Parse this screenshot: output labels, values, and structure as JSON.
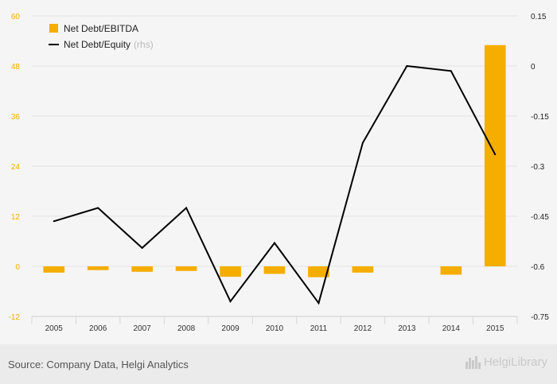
{
  "chart_data": {
    "type": "bar+line",
    "categories": [
      "2005",
      "2006",
      "2007",
      "2008",
      "2009",
      "2010",
      "2011",
      "2012",
      "2013",
      "2014",
      "2015"
    ],
    "series": [
      {
        "name": "Net Debt/EBITDA",
        "kind": "bar",
        "axis": "left",
        "color": "#f5ad00",
        "values": [
          -1.5,
          -0.9,
          -1.3,
          -1.1,
          -2.5,
          -1.8,
          -2.6,
          -1.5,
          null,
          -2.0,
          53.0
        ]
      },
      {
        "name": "Net Debt/Equity",
        "rhs_suffix": "(rhs)",
        "kind": "line",
        "axis": "right",
        "color": "#000000",
        "values": [
          -0.465,
          -0.425,
          -0.545,
          -0.425,
          -0.705,
          -0.53,
          -0.71,
          -0.23,
          0.0,
          -0.015,
          -0.265
        ]
      }
    ],
    "y_left": {
      "ticks": [
        "60",
        "48",
        "36",
        "24",
        "12",
        "0",
        "-12"
      ],
      "min": -12,
      "max": 60,
      "color": "#f5ad00"
    },
    "y_right": {
      "ticks": [
        "0.15",
        "0",
        "-0.15",
        "-0.3",
        "-0.45",
        "-0.6",
        "-0.75"
      ],
      "min": -0.75,
      "max": 0.15
    },
    "grid": true,
    "legend_position": "top-left"
  },
  "footer": {
    "source": "Source: Company Data, Helgi Analytics",
    "brand": "HelgiLibrary"
  }
}
